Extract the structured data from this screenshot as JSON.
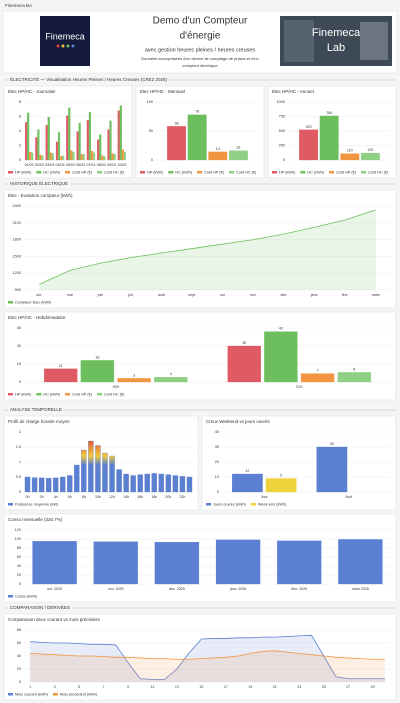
{
  "header": {
    "badge": "Finemeca BA",
    "logo": "Finemeca",
    "title_line1": "Demo d'un Compteur",
    "title_line2": "d'énergie",
    "subtitle": "avec gestion heures pleines / heures creuses",
    "description_line1": "Données anonymisées d'un device de comptage de pulses et d'un",
    "description_line2": "compteur électrique",
    "lab_line1": "Finemeca",
    "lab_line2": "Lab"
  },
  "sections": [
    "ÉLECTRICITÉ — Visualisation Heures Pleines / Heures Creuses (CRE2 2026)",
    "HISTORIQUE ÉLECTRIQUE",
    "ANALYSE TEMPORELLE",
    "COMPARAISON / DÉRIVÉES"
  ],
  "chart_data": [
    {
      "type": "bar",
      "title": "Elec HP/HC - Journalier",
      "categories": [
        "01/03",
        "02/03",
        "03/03",
        "04/03",
        "05/03",
        "06/03",
        "07/03",
        "08/03",
        "09/03",
        "10/03"
      ],
      "series": [
        {
          "name": "HP (kWh)",
          "color": "#e05a63",
          "values": [
            5.2,
            3.1,
            4.8,
            2.5,
            6.1,
            3.9,
            5.5,
            2.8,
            4.2,
            6.8
          ]
        },
        {
          "name": "HC (kWh)",
          "color": "#6dbf5e",
          "values": [
            6.5,
            4.2,
            5.9,
            3.8,
            7.2,
            5.1,
            6.6,
            3.5,
            5.4,
            7.5
          ]
        },
        {
          "name": "Coût HP (€)",
          "color": "#f29541",
          "values": [
            1.1,
            0.7,
            1.0,
            0.5,
            1.3,
            0.8,
            1.2,
            0.6,
            0.9,
            1.4
          ]
        },
        {
          "name": "Coût HC (€)",
          "color": "#8fcf84",
          "values": [
            1.0,
            0.6,
            0.9,
            0.6,
            1.1,
            0.8,
            1.0,
            0.5,
            0.8,
            1.1
          ]
        }
      ],
      "ylim": [
        0,
        8
      ],
      "yticks": [
        0,
        2,
        4,
        6,
        8
      ],
      "grid": true
    },
    {
      "type": "bar",
      "title": "Elec HP/HC - Mensuel",
      "categories": [
        null
      ],
      "series": [
        {
          "name": "HP (kWh)",
          "color": "#e05a63",
          "values": [
            58
          ]
        },
        {
          "name": "HC (kWh)",
          "color": "#6dbf5e",
          "values": [
            78
          ]
        },
        {
          "name": "Coût HP (€)",
          "color": "#f29541",
          "values": [
            14
          ]
        },
        {
          "name": "Coût HC (€)",
          "color": "#8fcf84",
          "values": [
            16
          ]
        }
      ],
      "ylim": [
        0,
        100
      ],
      "yticks": [
        0,
        50,
        100
      ],
      "grid": true,
      "show_values": true
    },
    {
      "type": "bar",
      "title": "Elec HP/HC - Annuel",
      "categories": [
        null
      ],
      "series": [
        {
          "name": "HP (kWh)",
          "color": "#e05a63",
          "values": [
            520
          ]
        },
        {
          "name": "HC (kWh)",
          "color": "#6dbf5e",
          "values": [
            760
          ]
        },
        {
          "name": "Coût HP (€)",
          "color": "#f29541",
          "values": [
            110
          ]
        },
        {
          "name": "Coût HC (€)",
          "color": "#8fcf84",
          "values": [
            120
          ]
        }
      ],
      "ylim": [
        0,
        1000
      ],
      "yticks": [
        0,
        250,
        500,
        750,
        1000
      ],
      "grid": true,
      "show_values": true
    },
    {
      "type": "area",
      "title": "Elec - Evolution compteur (kWh)",
      "categories": [
        "avr.",
        "mai",
        "juin",
        "juil.",
        "août",
        "sept.",
        "oct.",
        "nov.",
        "déc.",
        "janv.",
        "févr.",
        "mars"
      ],
      "series": [
        {
          "name": "Compteur Elec (kWh)",
          "color": "#6dbf5e",
          "values": [
            1000,
            1250,
            1380,
            1480,
            1560,
            1640,
            1720,
            1800,
            1900,
            2020,
            2150,
            2330
          ]
        }
      ],
      "ylim": [
        900,
        2400
      ],
      "yticks": [
        900,
        1200,
        1500,
        1800,
        2100,
        2400
      ],
      "grid": true
    },
    {
      "type": "bar",
      "title": "Elec HP/HC - Hebdomadaire",
      "categories": [
        "S09",
        "S10"
      ],
      "series": [
        {
          "name": "HP (kWh)",
          "color": "#e05a63",
          "values": [
            11,
            30
          ]
        },
        {
          "name": "HC (kWh)",
          "color": "#6dbf5e",
          "values": [
            18,
            42
          ]
        },
        {
          "name": "Coût HP (€)",
          "color": "#f29541",
          "values": [
            3,
            7
          ]
        },
        {
          "name": "Coût HC (€)",
          "color": "#8fcf84",
          "values": [
            4,
            8
          ]
        }
      ],
      "ylim": [
        0,
        45
      ],
      "yticks": [
        0,
        15,
        30,
        45
      ],
      "grid": true,
      "show_values": true
    },
    {
      "type": "bar",
      "title": "Profil de charge horaire moyen",
      "categories": [
        "0h",
        "1h",
        "2h",
        "3h",
        "4h",
        "5h",
        "6h",
        "7h",
        "8h",
        "9h",
        "10h",
        "11h",
        "12h",
        "13h",
        "14h",
        "15h",
        "16h",
        "17h",
        "18h",
        "19h",
        "20h",
        "21h",
        "22h",
        "23h"
      ],
      "series": [
        {
          "name": "Puissance moyenne (kW)",
          "color": "#5b7fd1",
          "values": [
            0.5,
            0.48,
            0.47,
            0.46,
            0.47,
            0.5,
            0.55,
            0.9,
            1.4,
            1.7,
            1.55,
            1.3,
            1.2,
            0.75,
            0.6,
            0.55,
            0.58,
            0.6,
            0.62,
            0.6,
            0.58,
            0.55,
            0.52,
            0.5
          ]
        }
      ],
      "gradient": [
        "#e0443c",
        "#f0c93a",
        "#5b7fd1"
      ],
      "ylim": [
        0,
        2
      ],
      "yticks": [
        0,
        0.5,
        1,
        1.5,
        2
      ],
      "grid": true
    },
    {
      "type": "bar",
      "title": "Creux Weekend vs jours ouvrés",
      "categories": [
        "Jour",
        "Nuit"
      ],
      "series": [
        {
          "name": "Jours ouvrés (kWh)",
          "color": "#5b7fd1",
          "values": [
            12,
            30
          ]
        },
        {
          "name": "Week-end (kWh)",
          "color": "#f0d33a",
          "values": [
            9,
            null
          ]
        }
      ],
      "ylim": [
        0,
        40
      ],
      "yticks": [
        0,
        10,
        20,
        30,
        40
      ],
      "grid": true,
      "show_values": true
    },
    {
      "type": "bar",
      "title": "Conso mensuelle (326.7%)",
      "categories": [
        "oct. 2025",
        "nov. 2025",
        "déc. 2025",
        "janv. 2026",
        "févr. 2026",
        "mars 2026"
      ],
      "series": [
        {
          "name": "Conso (kWh)",
          "color": "#5b7fd1",
          "values": [
            95,
            94,
            93,
            98,
            96,
            99
          ]
        }
      ],
      "ylim": [
        0,
        120
      ],
      "yticks": [
        0,
        20,
        40,
        60,
        80,
        100,
        120
      ],
      "grid": true
    },
    {
      "type": "area",
      "title": "Comparaison deux courant vs mois précédent",
      "categories": [
        "1",
        "2",
        "3",
        "4",
        "5",
        "6",
        "7",
        "8",
        "9",
        "10",
        "11",
        "12",
        "13",
        "14",
        "15",
        "16",
        "17",
        "18",
        "19",
        "20",
        "21",
        "22",
        "23",
        "24",
        "25",
        "26",
        "27",
        "28",
        "29",
        "30"
      ],
      "series": [
        {
          "name": "Mois courant (kWh)",
          "color": "#5b7fd1",
          "values": [
            62,
            61,
            60,
            60,
            59,
            58,
            58,
            57,
            30,
            5,
            4,
            4,
            20,
            45,
            66,
            67,
            67,
            68,
            68,
            69,
            69,
            70,
            71,
            72,
            40,
            8,
            5,
            5,
            5,
            5
          ]
        },
        {
          "name": "Mois précédent (kWh)",
          "color": "#f29541",
          "values": [
            44,
            43,
            42,
            41,
            40,
            40,
            39,
            38,
            38,
            37,
            36,
            36,
            35,
            35,
            36,
            37,
            38,
            40,
            44,
            47,
            48,
            46,
            44,
            42,
            40,
            38,
            37,
            36,
            35,
            35
          ]
        }
      ],
      "ylim": [
        0,
        80
      ],
      "yticks": [
        0,
        20,
        40,
        60,
        80
      ],
      "grid": true
    }
  ]
}
